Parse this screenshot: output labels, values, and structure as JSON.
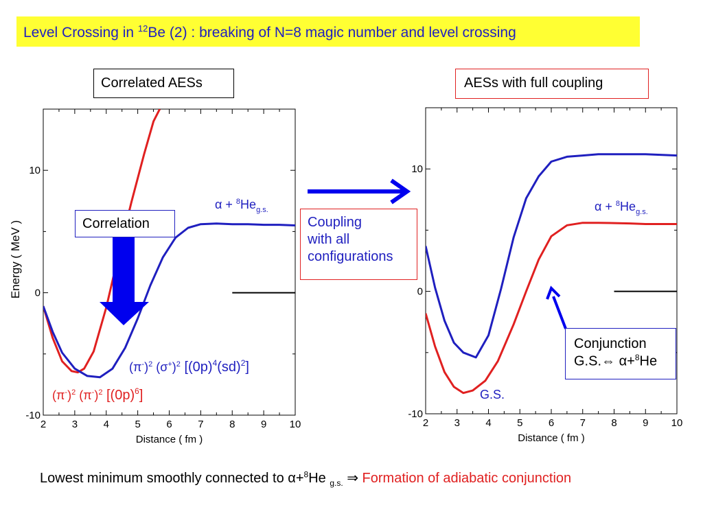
{
  "title": {
    "prefix": "Level Crossing in ",
    "sup": "12",
    "rest": "Be (2) : breaking of N=8 magic number and level crossing"
  },
  "left_panel_label": "Correlated AESs",
  "right_panel_label": "AESs with full coupling",
  "correlation_box": "Correlation",
  "coupling_box": [
    "Coupling",
    "with all",
    "configurations"
  ],
  "conjunction_box": {
    "line1": "Conjunction",
    "line2": "G.S.⇔ α+",
    "line2_sup": "8",
    "line2_end": "He"
  },
  "annotations": {
    "alpha_he_left": {
      "a": "α + ",
      "sup": "8",
      "he": "He",
      "sub": "g.s."
    },
    "alpha_he_right": {
      "a": "α + ",
      "sup": "8",
      "he": "He",
      "sub": "g.s."
    },
    "blue_config": {
      "p1": "(π",
      "s1": "-",
      "p2": ")",
      "s2": "2",
      "p3": " (σ",
      "s3": "+",
      "p4": ")",
      "s4": "2",
      "p5": " [(0p)",
      "s5": "4",
      "p6": "(sd)",
      "s6": "2",
      "p7": "]"
    },
    "red_config": {
      "p1": "(π",
      "s1": "-",
      "p2": ")",
      "s2": "2",
      "p3": " (π",
      "s3": "-",
      "p4": ")",
      "s4": "2",
      "p5": "  [(0p)",
      "s5": "6",
      "p6": "]"
    },
    "gs_label": "G.S."
  },
  "bottom": {
    "text1": "Lowest minimum smoothly connected to α+",
    "sup": "8",
    "text2": "He ",
    "sub": "g.s.",
    "arrow": " ⇒ ",
    "red_text": "Formation of adiabatic conjunction"
  },
  "colors": {
    "red": "#e02020",
    "blue": "#1f1fbf",
    "highlight": "#ffff33"
  },
  "chart_data": [
    {
      "type": "line",
      "xlabel": "Distance ( fm )",
      "ylabel": "Energy ( MeV )",
      "xlim": [
        2,
        10
      ],
      "ylim": [
        -10,
        15
      ],
      "xticks": [
        2,
        3,
        4,
        5,
        6,
        7,
        8,
        9,
        10
      ],
      "yticks": [
        -10,
        0,
        10
      ],
      "series": [
        {
          "color": "#e02020",
          "x": [
            2,
            2.3,
            2.6,
            2.9,
            3.1,
            3.3,
            3.6,
            4.0,
            4.4,
            4.8,
            5.2,
            5.5,
            5.7
          ],
          "y": [
            -1.1,
            -3.7,
            -5.6,
            -6.4,
            -6.5,
            -6.2,
            -4.8,
            -1.2,
            3.2,
            7.4,
            11.3,
            14.0,
            15.0
          ]
        },
        {
          "color": "#1f1fbf",
          "x": [
            2,
            2.3,
            2.6,
            3.0,
            3.4,
            3.8,
            4.2,
            4.6,
            5.0,
            5.4,
            5.8,
            6.2,
            6.6,
            7.0,
            7.5,
            8.0,
            8.5,
            9.0,
            9.5,
            10
          ],
          "y": [
            -1.1,
            -3.2,
            -4.9,
            -6.2,
            -6.8,
            -6.9,
            -6.2,
            -4.5,
            -2.1,
            0.6,
            2.9,
            4.5,
            5.3,
            5.6,
            5.65,
            5.6,
            5.6,
            5.55,
            5.55,
            5.5
          ]
        },
        {
          "color": "#000000",
          "x": [
            8.0,
            10.0
          ],
          "y": [
            0,
            0
          ]
        }
      ]
    },
    {
      "type": "line",
      "xlabel": "Distance ( fm )",
      "ylabel": "",
      "xlim": [
        2,
        10
      ],
      "ylim": [
        -10,
        15
      ],
      "xticks": [
        2,
        3,
        4,
        5,
        6,
        7,
        8,
        9,
        10
      ],
      "yticks": [
        -10,
        0,
        10
      ],
      "series": [
        {
          "color": "#e02020",
          "x": [
            2,
            2.3,
            2.6,
            2.9,
            3.2,
            3.5,
            3.9,
            4.3,
            4.8,
            5.2,
            5.6,
            6.0,
            6.5,
            7.0,
            7.5,
            8.5,
            9.0,
            10
          ],
          "y": [
            -1.8,
            -4.5,
            -6.6,
            -7.8,
            -8.3,
            -8.1,
            -7.3,
            -5.7,
            -2.7,
            0.0,
            2.6,
            4.5,
            5.4,
            5.6,
            5.6,
            5.55,
            5.5,
            5.5
          ]
        },
        {
          "color": "#1f1fbf",
          "x": [
            2,
            2.3,
            2.6,
            2.9,
            3.2,
            3.6,
            4.0,
            4.4,
            4.8,
            5.2,
            5.6,
            6.0,
            6.5,
            7.0,
            7.5,
            8.5,
            9.0,
            10
          ],
          "y": [
            3.7,
            0.3,
            -2.4,
            -4.2,
            -5.0,
            -5.4,
            -3.6,
            0.2,
            4.4,
            7.6,
            9.4,
            10.6,
            11.0,
            11.1,
            11.2,
            11.2,
            11.2,
            11.1
          ]
        },
        {
          "color": "#000000",
          "x": [
            8.0,
            10.0
          ],
          "y": [
            0,
            0
          ]
        }
      ]
    }
  ]
}
